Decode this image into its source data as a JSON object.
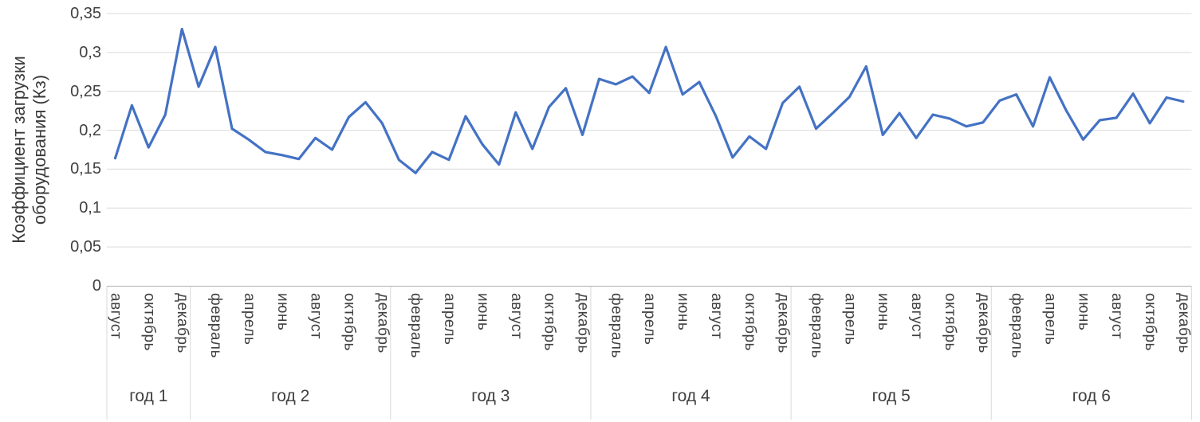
{
  "chart_data": {
    "type": "line",
    "title": "",
    "ylabel_lines": [
      "Коэффициент загрузки",
      "оборудования (Кз)"
    ],
    "xlabel": "",
    "ylim": [
      0,
      0.35
    ],
    "y_tick_step": 0.05,
    "y_tick_labels": [
      "0",
      "0,05",
      "0,1",
      "0,15",
      "0,2",
      "0,25",
      "0,3",
      "0,35"
    ],
    "grid": "horizontal",
    "legend_position": "none",
    "colors": {
      "line": "#4472C4",
      "gridline": "#d9d9d9",
      "axis_line": "#bfbfbf",
      "separator": "#d9d9d9",
      "text": "#404040"
    },
    "years": [
      {
        "label": "год 1",
        "month_labels": [
          "август",
          "октябрь",
          "декабрь"
        ],
        "month_label_slots": [
          0,
          2,
          4
        ],
        "values": [
          0.164,
          0.232,
          0.178,
          0.22,
          0.33
        ]
      },
      {
        "label": "год 2",
        "month_labels": [
          "февраль",
          "апрель",
          "июнь",
          "август",
          "октябрь",
          "декабрь"
        ],
        "month_label_slots": [
          1,
          3,
          5,
          7,
          9,
          11
        ],
        "values": [
          0.256,
          0.307,
          0.202,
          0.188,
          0.172,
          0.168,
          0.163,
          0.19,
          0.175,
          0.217,
          0.236,
          0.209
        ]
      },
      {
        "label": "год 3",
        "month_labels": [
          "февраль",
          "апрель",
          "июнь",
          "август",
          "октябрь",
          "декабрь"
        ],
        "month_label_slots": [
          1,
          3,
          5,
          7,
          9,
          11
        ],
        "values": [
          0.162,
          0.145,
          0.172,
          0.162,
          0.218,
          0.182,
          0.156,
          0.223,
          0.176,
          0.23,
          0.254,
          0.194
        ]
      },
      {
        "label": "год 4",
        "month_labels": [
          "февраль",
          "апрель",
          "июнь",
          "август",
          "октябрь",
          "декабрь"
        ],
        "month_label_slots": [
          1,
          3,
          5,
          7,
          9,
          11
        ],
        "values": [
          0.266,
          0.259,
          0.269,
          0.248,
          0.307,
          0.246,
          0.262,
          0.218,
          0.165,
          0.192,
          0.176,
          0.235
        ]
      },
      {
        "label": "год 5",
        "month_labels": [
          "февраль",
          "апрель",
          "июнь",
          "август",
          "октябрь",
          "декабрь"
        ],
        "month_label_slots": [
          1,
          3,
          5,
          7,
          9,
          11
        ],
        "values": [
          0.256,
          0.202,
          0.222,
          0.243,
          0.282,
          0.194,
          0.222,
          0.19,
          0.22,
          0.215,
          0.205,
          0.21
        ]
      },
      {
        "label": "год 6",
        "month_labels": [
          "февраль",
          "апрель",
          "июнь",
          "август",
          "октябрь",
          "декабрь"
        ],
        "month_label_slots": [
          1,
          3,
          5,
          7,
          9,
          11
        ],
        "values": [
          0.238,
          0.246,
          0.205,
          0.268,
          0.225,
          0.188,
          0.213,
          0.216,
          0.247,
          0.209,
          0.242,
          0.237
        ]
      }
    ]
  }
}
